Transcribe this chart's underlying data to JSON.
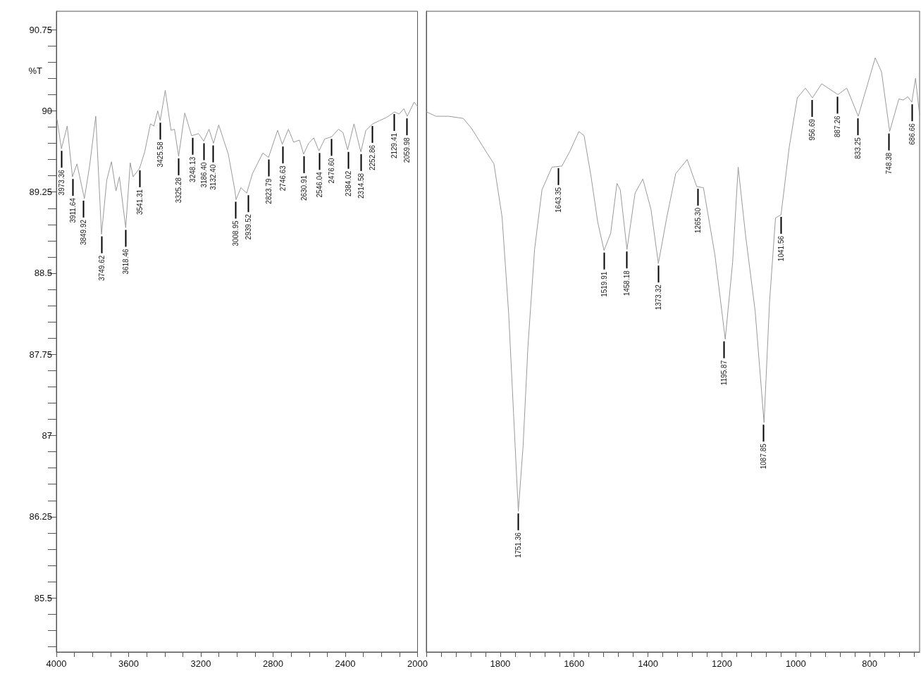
{
  "chart_data": [
    {
      "type": "line",
      "ylabel": "%T",
      "color": "#9a9a9a",
      "marker": "none",
      "grid": false,
      "xlim": [
        4000,
        2000
      ],
      "ylim": [
        85,
        90.92
      ],
      "xticks": [
        4000,
        {
          "value": 3900,
          "label": null
        },
        {
          "value": 3800,
          "label": null
        },
        {
          "value": 3700,
          "label": null
        },
        3600,
        {
          "value": 3500,
          "label": null
        },
        {
          "value": 3400,
          "label": null
        },
        {
          "value": 3300,
          "label": null
        },
        3200,
        {
          "value": 3100,
          "label": null
        },
        {
          "value": 3000,
          "label": null
        },
        {
          "value": 2900,
          "label": null
        },
        2800,
        {
          "value": 2700,
          "label": null
        },
        {
          "value": 2600,
          "label": null
        },
        {
          "value": 2500,
          "label": null
        },
        2400,
        {
          "value": 2300,
          "label": null
        },
        {
          "value": 2200,
          "label": null
        },
        {
          "value": 2100,
          "label": null
        },
        2000
      ],
      "yticks": [
        {
          "value": 85.05,
          "label": null
        },
        {
          "value": 85.2,
          "label": null
        },
        {
          "value": 85.35,
          "label": null
        },
        85.5,
        {
          "value": 85.65,
          "label": null
        },
        {
          "value": 85.8,
          "label": null
        },
        {
          "value": 85.95,
          "label": null
        },
        {
          "value": 86.1,
          "label": null
        },
        86.25,
        {
          "value": 86.4,
          "label": null
        },
        {
          "value": 86.55,
          "label": null
        },
        {
          "value": 86.7,
          "label": null
        },
        {
          "value": 86.85,
          "label": null
        },
        87,
        {
          "value": 87.15,
          "label": null
        },
        {
          "value": 87.3,
          "label": null
        },
        {
          "value": 87.45,
          "label": null
        },
        {
          "value": 87.6,
          "label": null
        },
        87.75,
        {
          "value": 87.9,
          "label": null
        },
        {
          "value": 88.05,
          "label": null
        },
        {
          "value": 88.2,
          "label": null
        },
        {
          "value": 88.35,
          "label": null
        },
        88.5,
        {
          "value": 88.65,
          "label": null
        },
        {
          "value": 88.8,
          "label": null
        },
        {
          "value": 88.95,
          "label": null
        },
        {
          "value": 89.1,
          "label": null
        },
        89.25,
        {
          "value": 89.4,
          "label": null
        },
        {
          "value": 89.55,
          "label": null
        },
        {
          "value": 89.7,
          "label": null
        },
        {
          "value": 89.85,
          "label": null
        },
        90,
        {
          "value": 90.15,
          "label": null
        },
        {
          "value": 90.3,
          "label": null
        },
        {
          "value": 90.45,
          "label": null
        },
        {
          "value": 90.6,
          "label": null
        },
        90.75
      ],
      "x": [
        3996,
        3972,
        3940,
        3911,
        3886,
        3845,
        3816,
        3782,
        3750,
        3721,
        3695,
        3670,
        3651,
        3616,
        3591,
        3575,
        3539,
        3511,
        3479,
        3460,
        3439,
        3425,
        3397,
        3365,
        3346,
        3323,
        3289,
        3251,
        3213,
        3184,
        3155,
        3130,
        3101,
        3048,
        3012,
        3005,
        2978,
        2946,
        2914,
        2857,
        2825,
        2775,
        2749,
        2715,
        2686,
        2654,
        2631,
        2603,
        2575,
        2546,
        2514,
        2476,
        2438,
        2413,
        2387,
        2352,
        2314,
        2286,
        2248,
        2210,
        2171,
        2127,
        2102,
        2076,
        2057,
        2019,
        2000
      ],
      "values": [
        89.92,
        89.65,
        89.86,
        89.39,
        89.51,
        89.19,
        89.49,
        89.95,
        88.86,
        89.36,
        89.53,
        89.26,
        89.39,
        88.92,
        89.52,
        89.39,
        89.47,
        89.62,
        89.88,
        89.86,
        90.0,
        89.91,
        90.19,
        89.82,
        89.83,
        89.58,
        89.98,
        89.77,
        89.79,
        89.72,
        89.83,
        89.7,
        89.87,
        89.6,
        89.27,
        89.18,
        89.29,
        89.24,
        89.42,
        89.61,
        89.57,
        89.82,
        89.69,
        89.83,
        89.71,
        89.73,
        89.6,
        89.7,
        89.75,
        89.63,
        89.74,
        89.76,
        89.83,
        89.8,
        89.64,
        89.88,
        89.62,
        89.82,
        89.88,
        89.91,
        89.94,
        89.99,
        89.97,
        90.02,
        89.95,
        90.08,
        90.04
      ],
      "annotations": [
        {
          "text": "3973.36",
          "x": 3973.36,
          "y": 89.65
        },
        {
          "text": "3911.64",
          "x": 3911.64,
          "y": 89.39
        },
        {
          "text": "3849.92",
          "x": 3849.92,
          "y": 89.19
        },
        {
          "text": "3749.62",
          "x": 3749.62,
          "y": 88.86
        },
        {
          "text": "3618.46",
          "x": 3618.46,
          "y": 88.92
        },
        {
          "text": "3541.31",
          "x": 3541.31,
          "y": 89.47
        },
        {
          "text": "3425.58",
          "x": 3425.58,
          "y": 89.91
        },
        {
          "text": "3325.28",
          "x": 3325.28,
          "y": 89.58
        },
        {
          "text": "3248.13",
          "x": 3248.13,
          "y": 89.77
        },
        {
          "text": "3186.40",
          "x": 3186.4,
          "y": 89.72
        },
        {
          "text": "3132.40",
          "x": 3132.4,
          "y": 89.7
        },
        {
          "text": "3008.95",
          "x": 3008.95,
          "y": 89.18
        },
        {
          "text": "2939.52",
          "x": 2939.52,
          "y": 89.24
        },
        {
          "text": "2823.79",
          "x": 2823.79,
          "y": 89.57
        },
        {
          "text": "2746.63",
          "x": 2746.63,
          "y": 89.69
        },
        {
          "text": "2630.91",
          "x": 2630.91,
          "y": 89.6
        },
        {
          "text": "2546.04",
          "x": 2546.04,
          "y": 89.63
        },
        {
          "text": "2476.60",
          "x": 2476.6,
          "y": 89.76
        },
        {
          "text": "2384.02",
          "x": 2384.02,
          "y": 89.64
        },
        {
          "text": "2314.58",
          "x": 2314.58,
          "y": 89.62
        },
        {
          "text": "2252.86",
          "x": 2252.86,
          "y": 89.88
        },
        {
          "text": "2129.41",
          "x": 2129.41,
          "y": 89.99
        },
        {
          "text": "2059.98",
          "x": 2059.98,
          "y": 89.95
        }
      ]
    },
    {
      "type": "line",
      "color": "#9a9a9a",
      "marker": "none",
      "grid": false,
      "tick_labels": "x",
      "xlim": [
        2000,
        665
      ],
      "ylim": [
        85,
        90.92
      ],
      "xticks": [
        {
          "value": 2000,
          "label": null
        },
        {
          "value": 1960,
          "label": null
        },
        {
          "value": 1920,
          "label": null
        },
        {
          "value": 1880,
          "label": null
        },
        {
          "value": 1840,
          "label": null
        },
        1800,
        {
          "value": 1760,
          "label": null
        },
        {
          "value": 1720,
          "label": null
        },
        {
          "value": 1680,
          "label": null
        },
        {
          "value": 1640,
          "label": null
        },
        1600,
        {
          "value": 1560,
          "label": null
        },
        {
          "value": 1520,
          "label": null
        },
        {
          "value": 1480,
          "label": null
        },
        {
          "value": 1440,
          "label": null
        },
        1400,
        {
          "value": 1360,
          "label": null
        },
        {
          "value": 1320,
          "label": null
        },
        {
          "value": 1280,
          "label": null
        },
        {
          "value": 1240,
          "label": null
        },
        1200,
        {
          "value": 1160,
          "label": null
        },
        {
          "value": 1120,
          "label": null
        },
        {
          "value": 1080,
          "label": null
        },
        {
          "value": 1040,
          "label": null
        },
        1000,
        {
          "value": 960,
          "label": null
        },
        {
          "value": 920,
          "label": null
        },
        {
          "value": 880,
          "label": null
        },
        {
          "value": 840,
          "label": null
        },
        800,
        {
          "value": 760,
          "label": null
        },
        {
          "value": 720,
          "label": null
        },
        {
          "value": 680,
          "label": null
        }
      ],
      "x": [
        1999,
        1974,
        1939,
        1900,
        1878,
        1834,
        1817,
        1795,
        1777,
        1764,
        1751,
        1738,
        1725,
        1707,
        1687,
        1660,
        1633,
        1611,
        1587,
        1573,
        1554,
        1536,
        1519,
        1501,
        1484,
        1475,
        1457,
        1435,
        1414,
        1392,
        1372,
        1349,
        1325,
        1294,
        1268,
        1250,
        1219,
        1191,
        1171,
        1156,
        1136,
        1110,
        1086,
        1071,
        1055,
        1040,
        1018,
        996,
        974,
        955,
        930,
        886,
        862,
        831,
        785,
        768,
        746,
        721,
        709,
        697,
        686,
        676,
        665
      ],
      "values": [
        89.99,
        89.95,
        89.95,
        89.93,
        89.84,
        89.6,
        89.51,
        89.02,
        88.12,
        87.21,
        86.3,
        86.91,
        87.82,
        88.72,
        89.27,
        89.48,
        89.49,
        89.63,
        89.81,
        89.77,
        89.39,
        88.97,
        88.71,
        88.87,
        89.33,
        89.27,
        88.72,
        89.24,
        89.37,
        89.09,
        88.59,
        89.02,
        89.42,
        89.55,
        89.3,
        89.29,
        88.67,
        87.89,
        88.6,
        89.48,
        88.85,
        88.15,
        87.12,
        88.24,
        89.01,
        89.04,
        89.66,
        90.12,
        90.21,
        90.12,
        90.25,
        90.15,
        90.21,
        89.95,
        90.49,
        90.36,
        89.81,
        90.11,
        90.1,
        90.13,
        90.08,
        90.3,
        89.96
      ],
      "annotations": [
        {
          "text": "1751.36",
          "x": 1751.36,
          "y": 86.3
        },
        {
          "text": "1643.35",
          "x": 1643.35,
          "y": 89.49
        },
        {
          "text": "1519.91",
          "x": 1519.91,
          "y": 88.71
        },
        {
          "text": "1458.18",
          "x": 1458.18,
          "y": 88.72
        },
        {
          "text": "1373.32",
          "x": 1373.32,
          "y": 88.59
        },
        {
          "text": "1265.30",
          "x": 1265.3,
          "y": 89.3
        },
        {
          "text": "1195.87",
          "x": 1195.87,
          "y": 87.89
        },
        {
          "text": "1087.85",
          "x": 1087.85,
          "y": 87.12
        },
        {
          "text": "1041.56",
          "x": 1041.56,
          "y": 89.04
        },
        {
          "text": "956.69",
          "x": 956.69,
          "y": 90.12
        },
        {
          "text": "887.26",
          "x": 887.26,
          "y": 90.15
        },
        {
          "text": "833.25",
          "x": 833.25,
          "y": 89.95
        },
        {
          "text": "748.38",
          "x": 748.38,
          "y": 89.81
        },
        {
          "text": "686.66",
          "x": 686.66,
          "y": 90.08
        }
      ]
    }
  ]
}
